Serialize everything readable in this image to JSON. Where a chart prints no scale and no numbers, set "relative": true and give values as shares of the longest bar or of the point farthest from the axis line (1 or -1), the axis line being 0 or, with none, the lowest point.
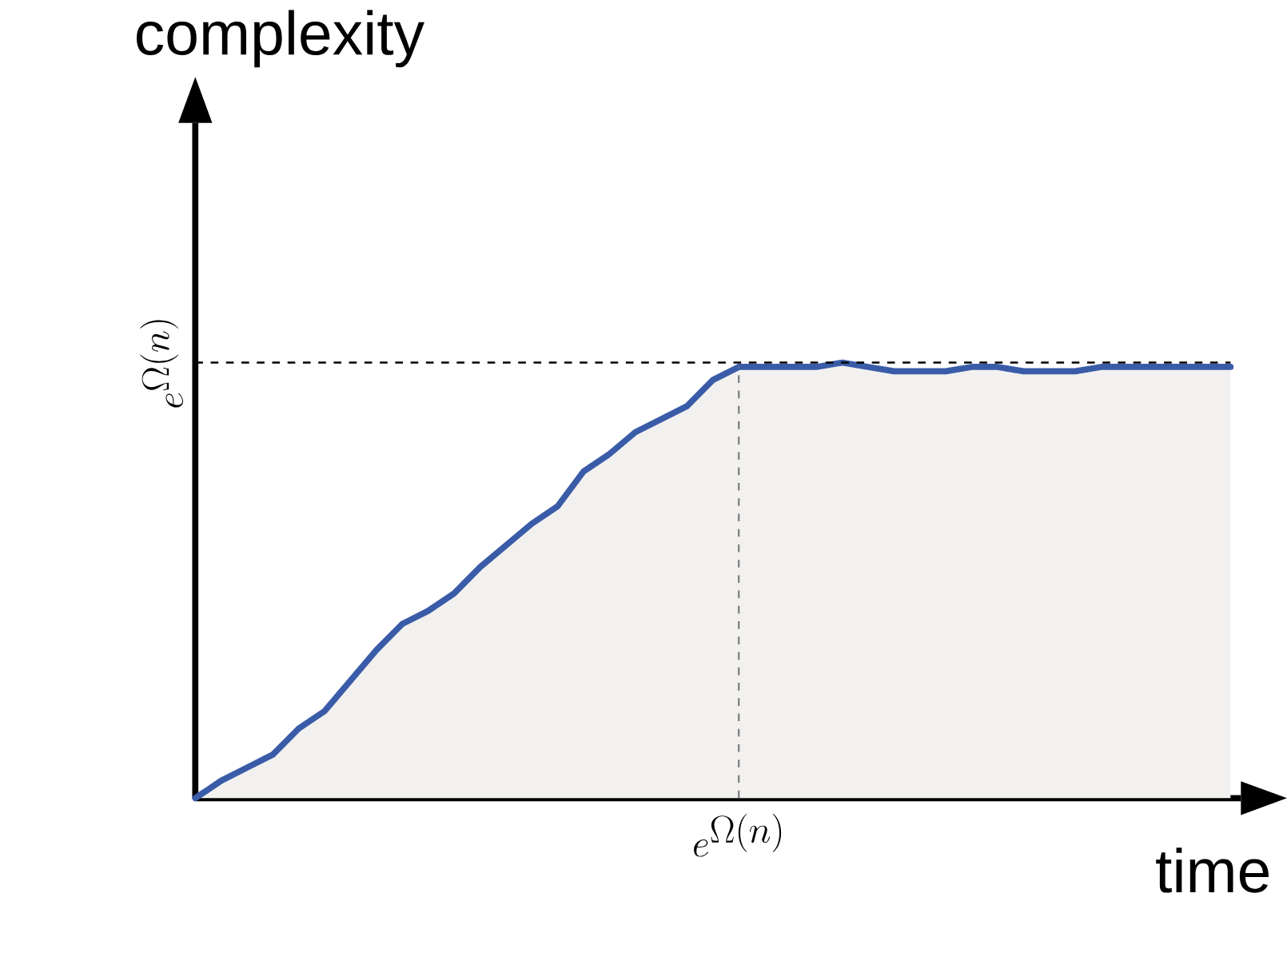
{
  "chart_data": {
    "type": "area",
    "relative": true,
    "xlabel": "time",
    "ylabel": "complexity",
    "categories": [
      null,
      null,
      null,
      null,
      null,
      null,
      null,
      null,
      null,
      null,
      null,
      null,
      null,
      null,
      null,
      null,
      null,
      null,
      null,
      null,
      null,
      null,
      null,
      null,
      null,
      null,
      null,
      null,
      null,
      null,
      null,
      null,
      null,
      null,
      null,
      null,
      null,
      null,
      null,
      null,
      null
    ],
    "series": [
      {
        "color": "#3a5ca8",
        "values": [
          0,
          0.04,
          0.07,
          0.1,
          0.16,
          0.2,
          0.27,
          0.34,
          0.4,
          0.43,
          0.47,
          0.53,
          0.58,
          0.63,
          0.67,
          0.75,
          0.79,
          0.84,
          0.87,
          0.9,
          0.96,
          0.99,
          0.99,
          0.99,
          0.99,
          1,
          0.99,
          0.98,
          0.98,
          0.98,
          0.99,
          0.99,
          0.98,
          0.98,
          0.98,
          0.99,
          0.99,
          0.99,
          0.99,
          0.99,
          0.99
        ]
      }
    ],
    "ref_lines": [
      {
        "axis": "y",
        "value": 1,
        "label": "e^{\\Omega(n)}",
        "color": "#000000",
        "line_style": "dashed"
      }
    ],
    "annotations": [
      "e^{\\Omega(n)}"
    ]
  }
}
